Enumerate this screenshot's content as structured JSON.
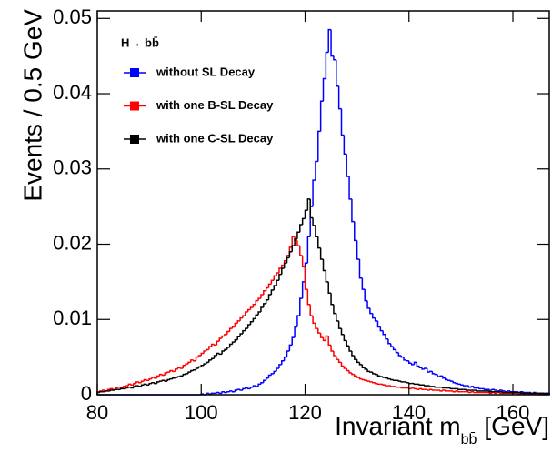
{
  "chart_data": {
    "type": "histogram",
    "ylabel": "Events / 0.5 GeV",
    "xlabel": "Invariant m",
    "xlabel_subscript": "bb̄",
    "xlabel_unit": "[GeV]",
    "legend_title": "H→ bb̄",
    "xlim": [
      80,
      167
    ],
    "ylim": [
      0,
      0.051
    ],
    "xticks": [
      80,
      100,
      120,
      140,
      160
    ],
    "yticks": [
      0,
      0.01,
      0.02,
      0.03,
      0.04,
      0.05
    ],
    "bins": [
      80,
      80.5,
      81,
      81.5,
      82,
      82.5,
      83,
      83.5,
      84,
      84.5,
      85,
      85.5,
      86,
      86.5,
      87,
      87.5,
      88,
      88.5,
      89,
      89.5,
      90,
      90.5,
      91,
      91.5,
      92,
      92.5,
      93,
      93.5,
      94,
      94.5,
      95,
      95.5,
      96,
      96.5,
      97,
      97.5,
      98,
      98.5,
      99,
      99.5,
      100,
      100.5,
      101,
      101.5,
      102,
      102.5,
      103,
      103.5,
      104,
      104.5,
      105,
      105.5,
      106,
      106.5,
      107,
      107.5,
      108,
      108.5,
      109,
      109.5,
      110,
      110.5,
      111,
      111.5,
      112,
      112.5,
      113,
      113.5,
      114,
      114.5,
      115,
      115.5,
      116,
      116.5,
      117,
      117.5,
      118,
      118.5,
      119,
      119.5,
      120,
      120.5,
      121,
      121.5,
      122,
      122.5,
      123,
      123.5,
      124,
      124.5,
      125,
      125.5,
      126,
      126.5,
      127,
      127.5,
      128,
      128.5,
      129,
      129.5,
      130,
      130.5,
      131,
      131.5,
      132,
      132.5,
      133,
      133.5,
      134,
      134.5,
      135,
      135.5,
      136,
      136.5,
      137,
      137.5,
      138,
      138.5,
      139,
      139.5,
      140,
      140.5,
      141,
      141.5,
      142,
      142.5,
      143,
      143.5,
      144,
      144.5,
      145,
      145.5,
      146,
      146.5,
      147,
      147.5,
      148,
      148.5,
      149,
      149.5,
      150,
      150.5,
      151,
      151.5,
      152,
      152.5,
      153,
      153.5,
      154,
      154.5,
      155,
      155.5,
      156,
      156.5,
      157,
      157.5,
      158,
      158.5,
      159,
      159.5,
      160,
      160.5,
      161,
      161.5,
      162,
      162.5,
      163,
      163.5,
      164,
      164.5,
      165,
      165.5,
      166,
      166.5,
      167
    ],
    "series": [
      {
        "name": "without SL Decay",
        "color": "#0000ff",
        "values": [
          0,
          0,
          0,
          0,
          0,
          0,
          0,
          0,
          0,
          0,
          0,
          0,
          0,
          0,
          0,
          0,
          0,
          0,
          0,
          0,
          0,
          0,
          0,
          0,
          0,
          0,
          0,
          0,
          0,
          0,
          0,
          0,
          0,
          0,
          0,
          0,
          0,
          0,
          0,
          0,
          0.0001,
          0,
          0.0002,
          0.0001,
          0.0002,
          0.0002,
          0.0003,
          0.0002,
          0.0004,
          0.0003,
          0.0004,
          0.0005,
          0.0004,
          0.0006,
          0.0007,
          0.0006,
          0.0008,
          0.0009,
          0.0008,
          0.001,
          0.0012,
          0.0011,
          0.0014,
          0.0016,
          0.0019,
          0.0022,
          0.0026,
          0.0028,
          0.0031,
          0.0035,
          0.004,
          0.0045,
          0.005,
          0.0058,
          0.0066,
          0.0076,
          0.009,
          0.0105,
          0.0128,
          0.015,
          0.0175,
          0.021,
          0.025,
          0.0285,
          0.031,
          0.035,
          0.039,
          0.042,
          0.0455,
          0.0485,
          0.045,
          0.0445,
          0.041,
          0.038,
          0.0345,
          0.032,
          0.029,
          0.026,
          0.023,
          0.0205,
          0.018,
          0.0155,
          0.014,
          0.0125,
          0.0115,
          0.0108,
          0.0102,
          0.0098,
          0.009,
          0.0085,
          0.008,
          0.0074,
          0.0068,
          0.0064,
          0.006,
          0.0056,
          0.0052,
          0.005,
          0.0046,
          0.0045,
          0.0042,
          0.004,
          0.0043,
          0.0038,
          0.0036,
          0.0034,
          0.0035,
          0.003,
          0.0031,
          0.0028,
          0.0027,
          0.0024,
          0.0025,
          0.0022,
          0.002,
          0.0019,
          0.0018,
          0.0016,
          0.0015,
          0.0014,
          0.0013,
          0.0012,
          0.0012,
          0.001,
          0.0011,
          0.0009,
          0.0009,
          0.0008,
          0.0008,
          0.0007,
          0.0007,
          0.0006,
          0.0007,
          0.0006,
          0.0005,
          0.0006,
          0.0005,
          0.0004,
          0.0005,
          0.0004,
          0.0004,
          0.0004,
          0.0003,
          0.0004,
          0.0003,
          0.0003,
          0.0003,
          0.0002,
          0.0003,
          0.0002,
          0.0002,
          0.0002,
          0.0002,
          0.0001
        ]
      },
      {
        "name": "with one B-SL Decay",
        "color": "#ff0000",
        "values": [
          0.0004,
          0.0005,
          0.0006,
          0.0005,
          0.0007,
          0.0008,
          0.0007,
          0.0009,
          0.001,
          0.0009,
          0.0011,
          0.0012,
          0.0014,
          0.0013,
          0.0015,
          0.0017,
          0.0016,
          0.0018,
          0.002,
          0.0019,
          0.0021,
          0.0023,
          0.0022,
          0.0025,
          0.0027,
          0.0026,
          0.0029,
          0.003,
          0.0032,
          0.0031,
          0.0034,
          0.0036,
          0.0035,
          0.0039,
          0.0041,
          0.0043,
          0.0046,
          0.0045,
          0.005,
          0.0052,
          0.0055,
          0.0058,
          0.006,
          0.0064,
          0.0067,
          0.0066,
          0.0071,
          0.0075,
          0.0078,
          0.008,
          0.0084,
          0.0088,
          0.009,
          0.0095,
          0.0098,
          0.0102,
          0.0105,
          0.011,
          0.0113,
          0.0116,
          0.012,
          0.0125,
          0.0128,
          0.0133,
          0.0138,
          0.0142,
          0.0147,
          0.0152,
          0.0158,
          0.0162,
          0.0168,
          0.0172,
          0.0178,
          0.0185,
          0.0196,
          0.021,
          0.0205,
          0.0198,
          0.0185,
          0.017,
          0.014,
          0.012,
          0.0105,
          0.0095,
          0.0088,
          0.0082,
          0.0076,
          0.0072,
          0.0078,
          0.0066,
          0.0058,
          0.0052,
          0.0047,
          0.0043,
          0.0038,
          0.0035,
          0.0032,
          0.0029,
          0.0027,
          0.0025,
          0.0023,
          0.0021,
          0.002,
          0.0019,
          0.0018,
          0.0017,
          0.0016,
          0.0015,
          0.0014,
          0.0014,
          0.0013,
          0.0012,
          0.0012,
          0.0011,
          0.0011,
          0.001,
          0.001,
          0.0009,
          0.0009,
          0.0009,
          0.0008,
          0.0009,
          0.0008,
          0.0007,
          0.0008,
          0.0007,
          0.0007,
          0.0006,
          0.0007,
          0.0006,
          0.0006,
          0.0006,
          0.0005,
          0.0006,
          0.0005,
          0.0005,
          0.0005,
          0.0004,
          0.0005,
          0.0004,
          0.0004,
          0.0004,
          0.0004,
          0.0003,
          0.0004,
          0.0003,
          0.0003,
          0.0003,
          0.0003,
          0.0003,
          0.0003,
          0.0002,
          0.0003,
          0.0002,
          0.0003,
          0.0002,
          0.0002,
          0.0002,
          0.0002,
          0.0002,
          0.0002,
          0.0002,
          0.0001,
          0.0002,
          0.0001,
          0.0002,
          0.0001,
          0.0001,
          0.0001,
          0.0002,
          0.0001,
          0.0001,
          0.0001,
          0.0001
        ]
      },
      {
        "name": "with one C-SL Decay",
        "color": "#000000",
        "values": [
          0.0003,
          0.0004,
          0.0004,
          0.0005,
          0.0005,
          0.0006,
          0.0006,
          0.0007,
          0.0007,
          0.0008,
          0.0008,
          0.0009,
          0.001,
          0.0009,
          0.0011,
          0.0012,
          0.0011,
          0.0013,
          0.0014,
          0.0013,
          0.0015,
          0.0016,
          0.0015,
          0.0017,
          0.0018,
          0.0019,
          0.0018,
          0.002,
          0.0021,
          0.0022,
          0.0023,
          0.0024,
          0.0025,
          0.0027,
          0.0028,
          0.003,
          0.0032,
          0.0033,
          0.0035,
          0.0037,
          0.0039,
          0.0041,
          0.0043,
          0.0046,
          0.0048,
          0.0052,
          0.0055,
          0.0054,
          0.0058,
          0.006,
          0.0063,
          0.0067,
          0.007,
          0.0073,
          0.0077,
          0.0081,
          0.0085,
          0.0088,
          0.0093,
          0.0097,
          0.0101,
          0.0106,
          0.011,
          0.0116,
          0.0121,
          0.0126,
          0.0133,
          0.0139,
          0.0145,
          0.0152,
          0.016,
          0.0168,
          0.0175,
          0.0182,
          0.019,
          0.0198,
          0.0207,
          0.0216,
          0.0226,
          0.0234,
          0.0245,
          0.026,
          0.0235,
          0.0225,
          0.021,
          0.0195,
          0.018,
          0.0165,
          0.015,
          0.0135,
          0.012,
          0.0108,
          0.0098,
          0.0088,
          0.008,
          0.0072,
          0.0065,
          0.0058,
          0.0052,
          0.0047,
          0.0043,
          0.004,
          0.0036,
          0.0034,
          0.0031,
          0.003,
          0.0028,
          0.0027,
          0.0025,
          0.0024,
          0.0023,
          0.0022,
          0.0021,
          0.002,
          0.0019,
          0.0019,
          0.0018,
          0.0017,
          0.0017,
          0.0016,
          0.0015,
          0.0015,
          0.0014,
          0.0014,
          0.0013,
          0.0013,
          0.0012,
          0.0012,
          0.0011,
          0.0011,
          0.001,
          0.001,
          0.001,
          0.0009,
          0.0009,
          0.0009,
          0.0008,
          0.0008,
          0.0008,
          0.0007,
          0.0007,
          0.0007,
          0.0006,
          0.0006,
          0.0006,
          0.0006,
          0.0005,
          0.0005,
          0.0005,
          0.0005,
          0.0005,
          0.0004,
          0.0004,
          0.0004,
          0.0004,
          0.0004,
          0.0003,
          0.0003,
          0.0003,
          0.0003,
          0.0003,
          0.0003,
          0.0003,
          0.0002,
          0.0002,
          0.0002,
          0.0002,
          0.0002,
          0.0002,
          0.0002,
          0.0002,
          0.0002,
          0.0001,
          0.0002
        ]
      }
    ]
  }
}
